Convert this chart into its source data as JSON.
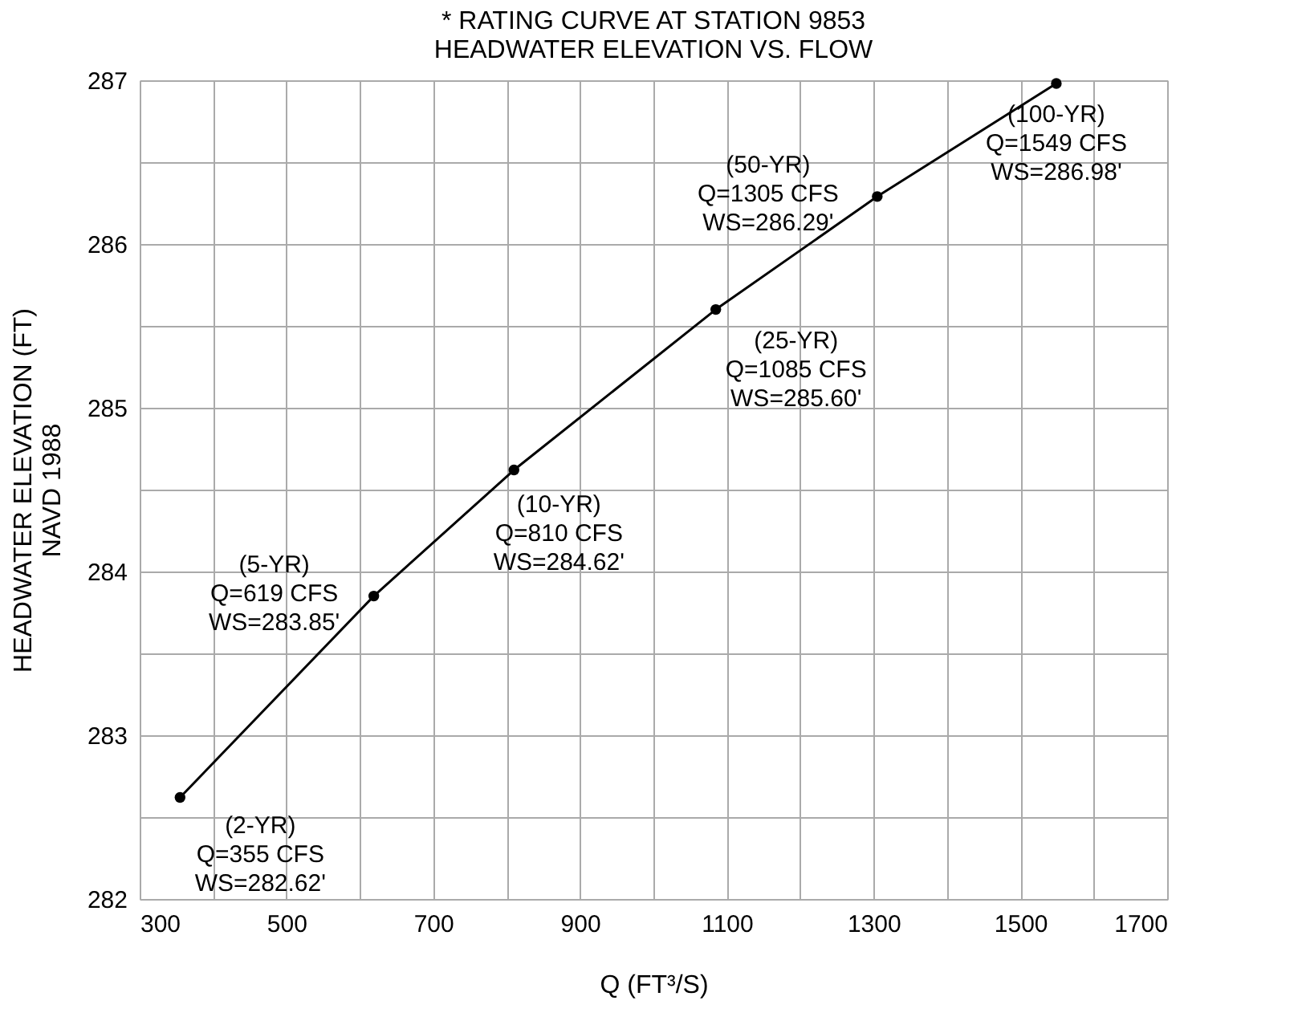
{
  "chart_data": {
    "type": "line",
    "title": "* RATING CURVE AT STATION 9853\nHEADWATER ELEVATION VS. FLOW",
    "xlabel": "Q (FT³/S)",
    "ylabel": "HEADWATER ELEVATION (FT)\nNAVD 1988",
    "x": [
      355,
      619,
      810,
      1085,
      1305,
      1549
    ],
    "series": [
      {
        "color": "#000000",
        "values": [
          282.62,
          283.85,
          284.62,
          285.6,
          286.29,
          286.98
        ]
      }
    ],
    "marker": "circle",
    "line_style": "solid",
    "grid": true,
    "xlim": [
      300,
      1700
    ],
    "ylim": [
      282,
      287
    ],
    "xticks": [
      300,
      {
        "value": 400,
        "label": null
      },
      500,
      {
        "value": 600,
        "label": null
      },
      700,
      {
        "value": 800,
        "label": null
      },
      900,
      {
        "value": 1000,
        "label": null
      },
      1100,
      {
        "value": 1200,
        "label": null
      },
      1300,
      {
        "value": 1400,
        "label": null
      },
      1500,
      {
        "value": 1600,
        "label": null
      },
      1700
    ],
    "yticks": [
      282,
      {
        "value": 282.5,
        "label": null
      },
      283,
      {
        "value": 283.5,
        "label": null
      },
      284,
      {
        "value": 284.5,
        "label": null
      },
      285,
      {
        "value": 285.5,
        "label": null
      },
      286,
      {
        "value": 286.5,
        "label": null
      },
      287
    ],
    "annotations": [
      {
        "text": "(2-YR)\nQ=355 CFS\nWS=282.62'",
        "x": 355,
        "y": 282.62
      },
      {
        "text": "(5-YR)\nQ=619 CFS\nWS=283.85'",
        "x": 619,
        "y": 283.85
      },
      {
        "text": "(10-YR)\nQ=810 CFS\nWS=284.62'",
        "x": 810,
        "y": 284.62
      },
      {
        "text": "(25-YR)\nQ=1085 CFS\nWS=285.60'",
        "x": 1085,
        "y": 285.6
      },
      {
        "text": "(50-YR)\nQ=1305 CFS\nWS=286.29'",
        "x": 1305,
        "y": 286.29
      },
      {
        "text": "(100-YR)\nQ=1549 CFS\nWS=286.98'",
        "x": 1549,
        "y": 286.98
      }
    ]
  }
}
